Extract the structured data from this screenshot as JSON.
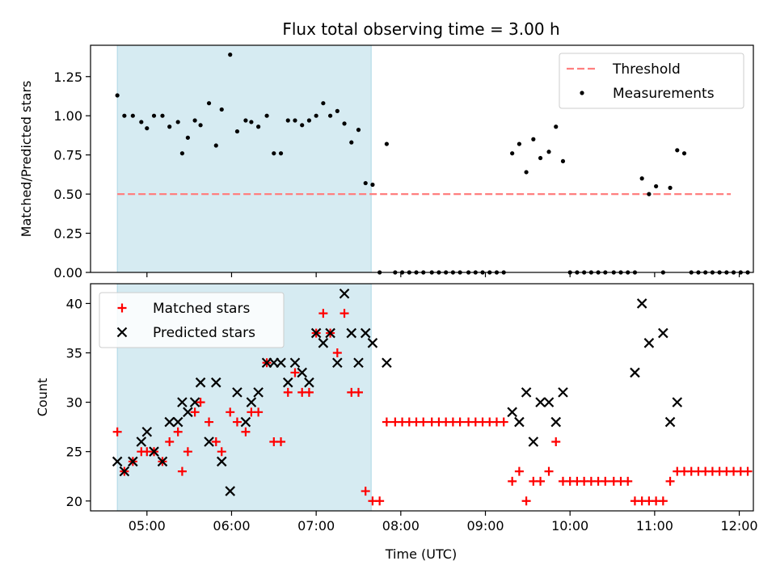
{
  "chart_data": {
    "type": "scatter",
    "title": "Flux total observing time = 3.00 h",
    "xlabel": "Time (UTC)",
    "x_ticks": [
      "05:00",
      "06:00",
      "07:00",
      "08:00",
      "09:00",
      "10:00",
      "11:00",
      "12:00"
    ],
    "xlim": [
      "04:20",
      "12:10"
    ],
    "highlight_span": [
      "04:39",
      "07:39"
    ],
    "highlight_color": "#add8e6",
    "panels": [
      {
        "ylabel": "Matched/Predicted stars",
        "ylim": [
          0,
          1.45
        ],
        "y_ticks": [
          "0.00",
          "0.25",
          "0.50",
          "0.75",
          "1.00",
          "1.25"
        ],
        "legend_position": "upper right",
        "threshold": {
          "name": "Threshold",
          "value": 0.5,
          "x_range": [
            "04:39",
            "11:54"
          ],
          "color": "#ff7f7f",
          "style": "dashed"
        },
        "series": [
          {
            "name": "Measurements",
            "color": "#000000",
            "marker": "dot",
            "points": [
              [
                "04:39",
                1.13
              ],
              [
                "04:44",
                1.0
              ],
              [
                "04:50",
                1.0
              ],
              [
                "04:56",
                0.96
              ],
              [
                "05:00",
                0.92
              ],
              [
                "05:05",
                1.0
              ],
              [
                "05:11",
                1.0
              ],
              [
                "05:16",
                0.93
              ],
              [
                "05:22",
                0.96
              ],
              [
                "05:25",
                0.76
              ],
              [
                "05:29",
                0.86
              ],
              [
                "05:34",
                0.97
              ],
              [
                "05:38",
                0.94
              ],
              [
                "05:44",
                1.08
              ],
              [
                "05:49",
                0.81
              ],
              [
                "05:53",
                1.04
              ],
              [
                "05:59",
                1.39
              ],
              [
                "06:04",
                0.9
              ],
              [
                "06:10",
                0.97
              ],
              [
                "06:14",
                0.96
              ],
              [
                "06:19",
                0.93
              ],
              [
                "06:25",
                1.0
              ],
              [
                "06:30",
                0.76
              ],
              [
                "06:35",
                0.76
              ],
              [
                "06:40",
                0.97
              ],
              [
                "06:45",
                0.97
              ],
              [
                "06:50",
                0.94
              ],
              [
                "06:55",
                0.97
              ],
              [
                "07:00",
                1.0
              ],
              [
                "07:05",
                1.08
              ],
              [
                "07:10",
                1.0
              ],
              [
                "07:15",
                1.03
              ],
              [
                "07:20",
                0.95
              ],
              [
                "07:25",
                0.83
              ],
              [
                "07:30",
                0.91
              ],
              [
                "07:35",
                0.57
              ],
              [
                "07:40",
                0.56
              ],
              [
                "07:45",
                0.0
              ],
              [
                "07:50",
                0.82
              ],
              [
                "07:56",
                0.0
              ],
              [
                "08:01",
                0.0
              ],
              [
                "08:06",
                0.0
              ],
              [
                "08:11",
                0.0
              ],
              [
                "08:16",
                0.0
              ],
              [
                "08:22",
                0.0
              ],
              [
                "08:27",
                0.0
              ],
              [
                "08:32",
                0.0
              ],
              [
                "08:37",
                0.0
              ],
              [
                "08:42",
                0.0
              ],
              [
                "08:48",
                0.0
              ],
              [
                "08:53",
                0.0
              ],
              [
                "08:58",
                0.0
              ],
              [
                "09:03",
                0.0
              ],
              [
                "09:08",
                0.0
              ],
              [
                "09:13",
                0.0
              ],
              [
                "09:19",
                0.76
              ],
              [
                "09:24",
                0.82
              ],
              [
                "09:29",
                0.64
              ],
              [
                "09:34",
                0.85
              ],
              [
                "09:39",
                0.73
              ],
              [
                "09:45",
                0.77
              ],
              [
                "09:50",
                0.93
              ],
              [
                "09:55",
                0.71
              ],
              [
                "10:00",
                0.0
              ],
              [
                "10:05",
                0.0
              ],
              [
                "10:10",
                0.0
              ],
              [
                "10:15",
                0.0
              ],
              [
                "10:20",
                0.0
              ],
              [
                "10:25",
                0.0
              ],
              [
                "10:31",
                0.0
              ],
              [
                "10:36",
                0.0
              ],
              [
                "10:41",
                0.0
              ],
              [
                "10:46",
                0.0
              ],
              [
                "10:51",
                0.6
              ],
              [
                "10:56",
                0.5
              ],
              [
                "11:01",
                0.55
              ],
              [
                "11:06",
                0.0
              ],
              [
                "11:11",
                0.54
              ],
              [
                "11:16",
                0.78
              ],
              [
                "11:21",
                0.76
              ],
              [
                "11:26",
                0.0
              ],
              [
                "11:31",
                0.0
              ],
              [
                "11:36",
                0.0
              ],
              [
                "11:41",
                0.0
              ],
              [
                "11:46",
                0.0
              ],
              [
                "11:51",
                0.0
              ],
              [
                "11:56",
                0.0
              ],
              [
                "12:01",
                0.0
              ],
              [
                "12:06",
                0.0
              ]
            ]
          }
        ]
      },
      {
        "ylabel": "Count",
        "ylim": [
          19,
          42
        ],
        "y_ticks": [
          "20",
          "25",
          "30",
          "35",
          "40"
        ],
        "legend_position": "upper left",
        "series": [
          {
            "name": "Matched stars",
            "color": "#ff0000",
            "marker": "plus",
            "points": [
              [
                "04:39",
                27
              ],
              [
                "04:44",
                23
              ],
              [
                "04:50",
                24
              ],
              [
                "04:56",
                25
              ],
              [
                "05:00",
                25
              ],
              [
                "05:05",
                25
              ],
              [
                "05:11",
                24
              ],
              [
                "05:16",
                26
              ],
              [
                "05:22",
                27
              ],
              [
                "05:25",
                23
              ],
              [
                "05:29",
                25
              ],
              [
                "05:34",
                29
              ],
              [
                "05:38",
                30
              ],
              [
                "05:44",
                28
              ],
              [
                "05:49",
                26
              ],
              [
                "05:53",
                25
              ],
              [
                "05:59",
                29
              ],
              [
                "06:04",
                28
              ],
              [
                "06:10",
                27
              ],
              [
                "06:14",
                29
              ],
              [
                "06:19",
                29
              ],
              [
                "06:25",
                34
              ],
              [
                "06:30",
                26
              ],
              [
                "06:35",
                26
              ],
              [
                "06:40",
                31
              ],
              [
                "06:45",
                33
              ],
              [
                "06:50",
                31
              ],
              [
                "06:55",
                31
              ],
              [
                "07:00",
                37
              ],
              [
                "07:05",
                39
              ],
              [
                "07:10",
                37
              ],
              [
                "07:15",
                35
              ],
              [
                "07:20",
                39
              ],
              [
                "07:25",
                31
              ],
              [
                "07:30",
                31
              ],
              [
                "07:35",
                21
              ],
              [
                "07:40",
                20
              ],
              [
                "07:45",
                20
              ],
              [
                "07:50",
                28
              ],
              [
                "07:56",
                28
              ],
              [
                "08:01",
                28
              ],
              [
                "08:06",
                28
              ],
              [
                "08:11",
                28
              ],
              [
                "08:16",
                28
              ],
              [
                "08:22",
                28
              ],
              [
                "08:27",
                28
              ],
              [
                "08:32",
                28
              ],
              [
                "08:37",
                28
              ],
              [
                "08:42",
                28
              ],
              [
                "08:48",
                28
              ],
              [
                "08:53",
                28
              ],
              [
                "08:58",
                28
              ],
              [
                "09:03",
                28
              ],
              [
                "09:08",
                28
              ],
              [
                "09:13",
                28
              ],
              [
                "09:19",
                22
              ],
              [
                "09:24",
                23
              ],
              [
                "09:29",
                20
              ],
              [
                "09:34",
                22
              ],
              [
                "09:39",
                22
              ],
              [
                "09:45",
                23
              ],
              [
                "09:50",
                26
              ],
              [
                "09:55",
                22
              ],
              [
                "10:00",
                22
              ],
              [
                "10:05",
                22
              ],
              [
                "10:10",
                22
              ],
              [
                "10:15",
                22
              ],
              [
                "10:20",
                22
              ],
              [
                "10:25",
                22
              ],
              [
                "10:31",
                22
              ],
              [
                "10:36",
                22
              ],
              [
                "10:41",
                22
              ],
              [
                "10:46",
                20
              ],
              [
                "10:51",
                20
              ],
              [
                "10:56",
                20
              ],
              [
                "11:01",
                20
              ],
              [
                "11:06",
                20
              ],
              [
                "11:11",
                22
              ],
              [
                "11:16",
                23
              ],
              [
                "11:21",
                23
              ],
              [
                "11:26",
                23
              ],
              [
                "11:31",
                23
              ],
              [
                "11:36",
                23
              ],
              [
                "11:41",
                23
              ],
              [
                "11:46",
                23
              ],
              [
                "11:51",
                23
              ],
              [
                "11:56",
                23
              ],
              [
                "12:01",
                23
              ],
              [
                "12:06",
                23
              ]
            ]
          },
          {
            "name": "Predicted stars",
            "color": "#000000",
            "marker": "x",
            "points": [
              [
                "04:39",
                24
              ],
              [
                "04:44",
                23
              ],
              [
                "04:50",
                24
              ],
              [
                "04:56",
                26
              ],
              [
                "05:00",
                27
              ],
              [
                "05:05",
                25
              ],
              [
                "05:11",
                24
              ],
              [
                "05:16",
                28
              ],
              [
                "05:22",
                28
              ],
              [
                "05:25",
                30
              ],
              [
                "05:29",
                29
              ],
              [
                "05:34",
                30
              ],
              [
                "05:38",
                32
              ],
              [
                "05:44",
                26
              ],
              [
                "05:49",
                32
              ],
              [
                "05:53",
                24
              ],
              [
                "05:59",
                21
              ],
              [
                "06:04",
                31
              ],
              [
                "06:10",
                28
              ],
              [
                "06:14",
                30
              ],
              [
                "06:19",
                31
              ],
              [
                "06:25",
                34
              ],
              [
                "06:30",
                34
              ],
              [
                "06:35",
                34
              ],
              [
                "06:40",
                32
              ],
              [
                "06:45",
                34
              ],
              [
                "06:50",
                33
              ],
              [
                "06:55",
                32
              ],
              [
                "07:00",
                37
              ],
              [
                "07:05",
                36
              ],
              [
                "07:10",
                37
              ],
              [
                "07:15",
                34
              ],
              [
                "07:20",
                41
              ],
              [
                "07:25",
                37
              ],
              [
                "07:30",
                34
              ],
              [
                "07:35",
                37
              ],
              [
                "07:40",
                36
              ],
              [
                "07:50",
                34
              ],
              [
                "09:19",
                29
              ],
              [
                "09:24",
                28
              ],
              [
                "09:29",
                31
              ],
              [
                "09:34",
                26
              ],
              [
                "09:39",
                30
              ],
              [
                "09:45",
                30
              ],
              [
                "09:50",
                28
              ],
              [
                "09:55",
                31
              ],
              [
                "10:46",
                33
              ],
              [
                "10:51",
                40
              ],
              [
                "10:56",
                36
              ],
              [
                "11:06",
                37
              ],
              [
                "11:11",
                28
              ],
              [
                "11:16",
                30
              ]
            ]
          }
        ]
      }
    ]
  }
}
